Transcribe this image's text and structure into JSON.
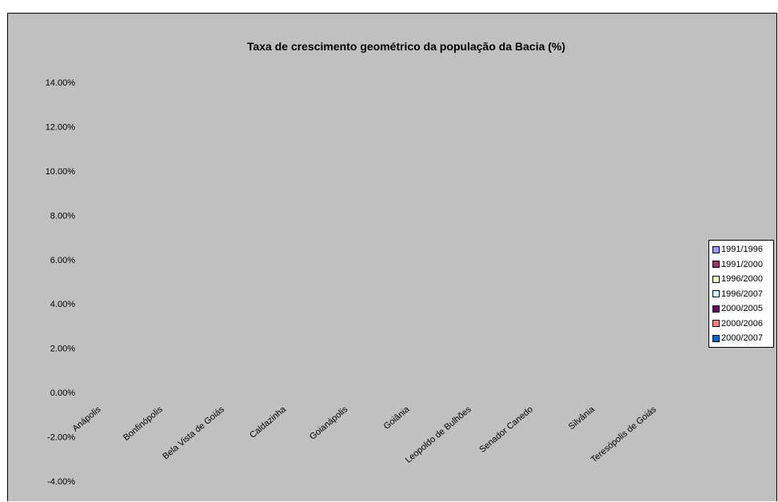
{
  "chart_data": {
    "type": "bar",
    "title": "Taxa de crescimento geométrico da população da Bacia (%)",
    "xlabel": "",
    "ylabel": "",
    "ylim": [
      -0.04,
      0.14
    ],
    "yticks": [
      "14.00%",
      "12.00%",
      "10.00%",
      "8.00%",
      "6.00%",
      "4.00%",
      "2.00%",
      "0.00%",
      "-2.00%",
      "-4.00%"
    ],
    "categories": [
      "Anápolis",
      "Bonfinópolis",
      "Bela Vista de Goiás",
      "Caldazinha",
      "Goianápolis",
      "Goiânia",
      "Leopoldo de Bulhões",
      "Senador Canedo",
      "Silvânia",
      "Teresópolis de Goiás"
    ],
    "series": [
      {
        "name": "1991/1996",
        "color": "#9999ff",
        "values": [
          null,
          null,
          null,
          null,
          null,
          null,
          null,
          null,
          null,
          null
        ]
      },
      {
        "name": "1991/2000",
        "color": "#993366",
        "values": [
          null,
          null,
          null,
          null,
          null,
          null,
          null,
          null,
          null,
          null
        ]
      },
      {
        "name": "1996/2000",
        "color": "#ffffcc",
        "values": [
          null,
          null,
          null,
          null,
          null,
          null,
          null,
          null,
          null,
          null
        ]
      },
      {
        "name": "1996/2007",
        "color": "#ccffff",
        "values": [
          null,
          null,
          null,
          null,
          null,
          null,
          null,
          null,
          null,
          null
        ]
      },
      {
        "name": "2000/2005",
        "color": "#660066",
        "values": [
          null,
          null,
          null,
          null,
          null,
          null,
          null,
          null,
          null,
          null
        ]
      },
      {
        "name": "2000/2006",
        "color": "#ff8080",
        "values": [
          null,
          null,
          null,
          null,
          null,
          null,
          null,
          null,
          null,
          null
        ]
      },
      {
        "name": "2000/2007",
        "color": "#0066cc",
        "values": [
          null,
          null,
          null,
          null,
          null,
          null,
          null,
          null,
          null,
          null
        ]
      }
    ],
    "grid": false,
    "legend_position": "right"
  }
}
